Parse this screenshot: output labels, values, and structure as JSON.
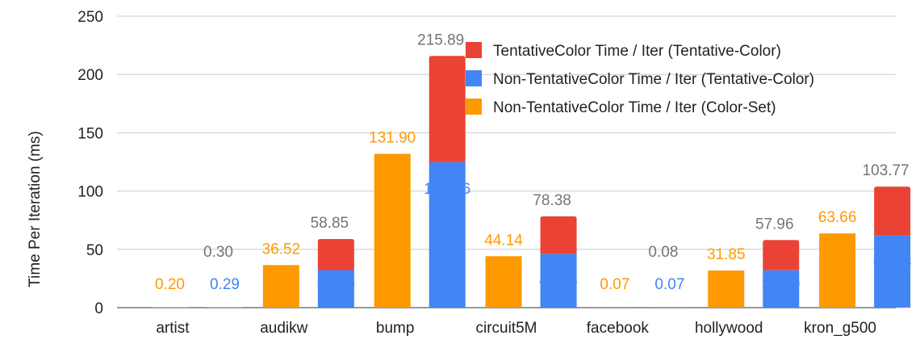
{
  "chart_data": {
    "type": "bar",
    "stacked_groups": true,
    "title": "",
    "xlabel": "",
    "ylabel": "Time Per Iteration (ms)",
    "ylim": [
      0,
      250
    ],
    "yticks": [
      0,
      50,
      100,
      150,
      200,
      250
    ],
    "grid": true,
    "legend_position": "top-right",
    "categories": [
      "artist",
      "audikw",
      "bump",
      "circuit5M",
      "facebook",
      "hollywood",
      "kron_g500"
    ],
    "series": [
      {
        "name": "TentativeColor Time / Iter (Tentative-Color)",
        "color": "#ea4335",
        "stack": "tentative",
        "values": [
          0.01,
          26.66,
          91.13,
          32.25,
          0.01,
          25.87,
          41.89
        ]
      },
      {
        "name": "Non-TentativeColor Time / Iter (Tentative-Color)",
        "color": "#4285f4",
        "stack": "tentative",
        "values": [
          0.29,
          32.19,
          124.76,
          46.13,
          0.07,
          32.09,
          61.88
        ]
      },
      {
        "name": "Non-TentativeColor Time / Iter (Color-Set)",
        "color": "#ff9900",
        "stack": "colorset",
        "values": [
          0.2,
          36.52,
          131.9,
          44.14,
          0.07,
          31.85,
          63.66
        ]
      }
    ],
    "total_labels": [
      "0.30",
      "58.85",
      "215.89",
      "78.38",
      "0.08",
      "57.96",
      "103.77"
    ],
    "total_values": [
      0.3,
      58.85,
      215.89,
      78.38,
      0.08,
      57.96,
      103.77
    ],
    "colorset_labels": [
      "0.20",
      "36.52",
      "131.90",
      "44.14",
      "0.07",
      "31.85",
      "63.66"
    ],
    "nontentative_labels": [
      "0.29",
      "32.19",
      "124.76",
      "46.13",
      "0.07",
      "32.09",
      "61.88"
    ],
    "total_label_color": "#757575"
  }
}
